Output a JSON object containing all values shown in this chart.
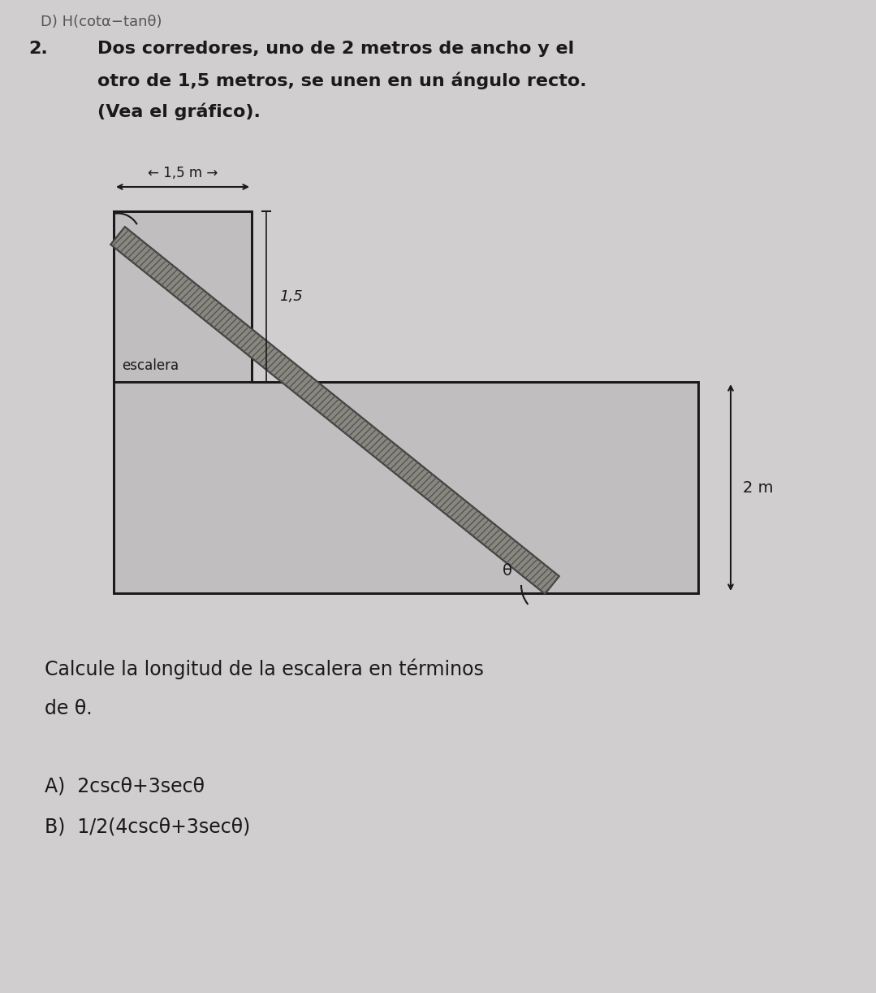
{
  "bg_color": "#d0cece",
  "header_text": "D) H(cotα−tanθ)",
  "problem_number": "2.",
  "problem_line1": "Dos corredores, uno de 2 metros de ancho y el",
  "problem_line2": "otro de 1,5 metros, se unen en un ángulo recto.",
  "problem_line3": "(Vea el gráfico).",
  "width_arrow_label": "← 1,5 m →",
  "vert_dim_label": "1,5",
  "height_label": "2 m",
  "angle_label": "θ",
  "escalera_label": "escalera",
  "question_line1": "Calcule la longitud de la escalera en términos",
  "question_line2": "de θ.",
  "answer_A": "A)  2cscθ+3secθ",
  "answer_B": "B)  1/2(4cscθ+3secθ)",
  "corridor_fill": "#c0bebe",
  "corridor_edge": "#1a1a1a",
  "ladder_fill": "#888880",
  "ladder_edge": "#333333",
  "text_color": "#1a1a1a",
  "header_color": "#555555",
  "dim_line_color": "#1a1a1a"
}
